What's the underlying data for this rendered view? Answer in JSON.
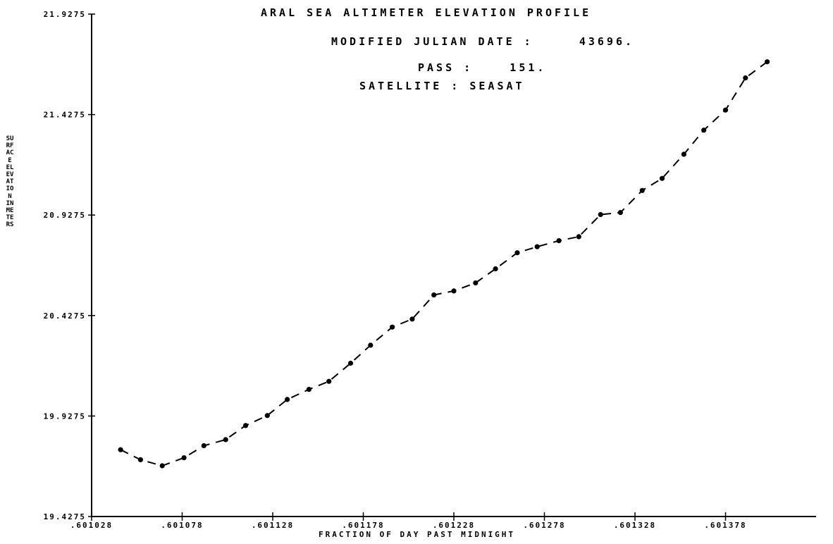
{
  "titles": {
    "line1": "ARAL SEA ALTIMETER ELEVATION PROFILE",
    "line2": "MODIFIED JULIAN DATE :     43696.",
    "line3": "PASS :    151.",
    "line4": "SATELLITE : SEASAT"
  },
  "chart_data": {
    "type": "line",
    "title": "ARAL SEA ALTIMETER ELEVATION PROFILE",
    "xlabel": "FRACTION OF DAY PAST MIDNIGHT",
    "ylabel": "SURFACE ELEVATION IN METERS",
    "xlim": [
      0.601028,
      0.601428
    ],
    "ylim": [
      19.4275,
      21.9275
    ],
    "x_ticks": [
      0.601028,
      0.601078,
      0.601128,
      0.601178,
      0.601228,
      0.601278,
      0.601328,
      0.601378
    ],
    "x_tick_labels": [
      ".601028",
      ".601078",
      ".601128",
      ".601178",
      ".601228",
      ".601278",
      ".601328",
      ".601378"
    ],
    "y_ticks": [
      19.4275,
      19.9275,
      20.4275,
      20.9275,
      21.4275,
      21.9275
    ],
    "y_tick_labels": [
      "19.4275",
      "19.9275",
      "20.4275",
      "20.9275",
      "21.4275",
      "21.9275"
    ],
    "line_style": "dashed",
    "marker": "dot",
    "grid": false,
    "series": [
      {
        "x": [
          0.601044,
          0.601055,
          0.601067,
          0.601079,
          0.60109,
          0.601102,
          0.601113,
          0.601125,
          0.601136,
          0.601148,
          0.601159,
          0.601171,
          0.601182,
          0.601194,
          0.601205,
          0.601217,
          0.601228,
          0.60124,
          0.601251,
          0.601263,
          0.601274,
          0.601286,
          0.601297,
          0.601309,
          0.60132,
          0.601332,
          0.601343,
          0.601355,
          0.601366,
          0.601378,
          0.601389,
          0.601401
        ],
        "y": [
          19.76,
          19.71,
          19.68,
          19.72,
          19.78,
          19.81,
          19.88,
          19.93,
          20.01,
          20.06,
          20.1,
          20.19,
          20.28,
          20.37,
          20.41,
          20.53,
          20.55,
          20.59,
          20.66,
          20.74,
          20.77,
          20.8,
          20.82,
          20.93,
          20.94,
          21.05,
          21.11,
          21.23,
          21.35,
          21.45,
          21.61,
          21.69
        ]
      }
    ]
  }
}
